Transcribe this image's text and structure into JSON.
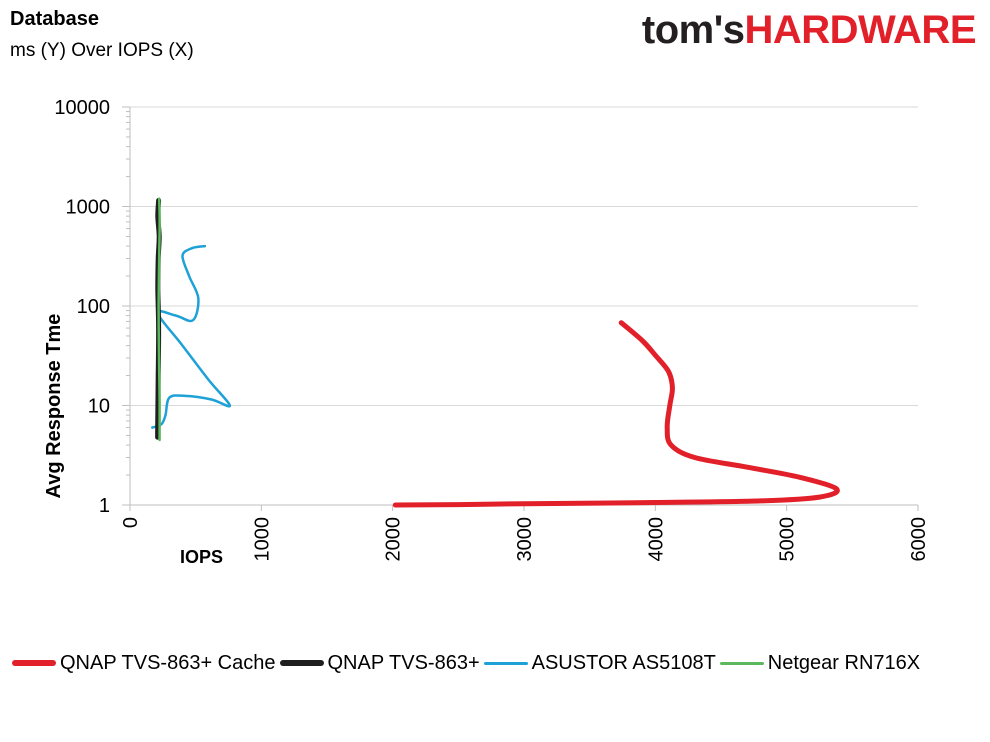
{
  "header": {
    "title": "Database",
    "subtitle": "ms (Y) Over IOPS (X)",
    "logo_part1": "tom's",
    "logo_part2": "HARDWARE"
  },
  "colors": {
    "grid": "#d9d9d9",
    "axis": "#bfbfbf",
    "logo_dark": "#231f20",
    "logo_red": "#e2202a"
  },
  "chart_data": {
    "type": "line",
    "title": "",
    "xlabel": "IOPS",
    "ylabel": "Avg Response Tme",
    "xlim": [
      0,
      6000
    ],
    "ylim": [
      1,
      10000
    ],
    "y_scale": "log",
    "x_ticks": [
      "0",
      "1000",
      "2000",
      "3000",
      "4000",
      "5000",
      "6000"
    ],
    "y_ticks": [
      "1",
      "10",
      "100",
      "1000",
      "10000"
    ],
    "grid": true,
    "legend_position": "bottom",
    "series": [
      {
        "name": "QNAP TVS-863+ Cache",
        "color": "#e2202a",
        "width": 5,
        "points": [
          [
            3740,
            68
          ],
          [
            3900,
            45
          ],
          [
            4000,
            32
          ],
          [
            4100,
            22
          ],
          [
            4130,
            15
          ],
          [
            4110,
            10
          ],
          [
            4090,
            6
          ],
          [
            4120,
            4
          ],
          [
            4300,
            3
          ],
          [
            4700,
            2.4
          ],
          [
            5100,
            1.9
          ],
          [
            5380,
            1.45
          ],
          [
            5250,
            1.2
          ],
          [
            4800,
            1.1
          ],
          [
            4000,
            1.06
          ],
          [
            3000,
            1.03
          ],
          [
            2500,
            1.01
          ],
          [
            2020,
            1.0
          ]
        ]
      },
      {
        "name": "QNAP TVS-863+",
        "color": "#1f1f1f",
        "width": 5,
        "points": [
          [
            210,
            4.8
          ],
          [
            212,
            8
          ],
          [
            215,
            20
          ],
          [
            218,
            60
          ],
          [
            212,
            150
          ],
          [
            215,
            300
          ],
          [
            222,
            500
          ],
          [
            212,
            800
          ],
          [
            218,
            1150
          ]
        ]
      },
      {
        "name": "ASUSTOR AS5108T",
        "color": "#1ea1d6",
        "width": 2.5,
        "points": [
          [
            170,
            6
          ],
          [
            240,
            6.5
          ],
          [
            270,
            8
          ],
          [
            300,
            12
          ],
          [
            420,
            12.5
          ],
          [
            620,
            11.5
          ],
          [
            760,
            10
          ],
          [
            600,
            18
          ],
          [
            400,
            40
          ],
          [
            210,
            85
          ],
          [
            350,
            80
          ],
          [
            480,
            72
          ],
          [
            520,
            120
          ],
          [
            450,
            200
          ],
          [
            400,
            320
          ],
          [
            470,
            380
          ],
          [
            570,
            400
          ]
        ]
      },
      {
        "name": "Netgear RN716X",
        "color": "#5cb85c",
        "width": 2.5,
        "points": [
          [
            225,
            4.5
          ],
          [
            225,
            12
          ],
          [
            220,
            40
          ],
          [
            218,
            100
          ],
          [
            222,
            300
          ],
          [
            226,
            700
          ],
          [
            222,
            1200
          ]
        ]
      }
    ]
  }
}
